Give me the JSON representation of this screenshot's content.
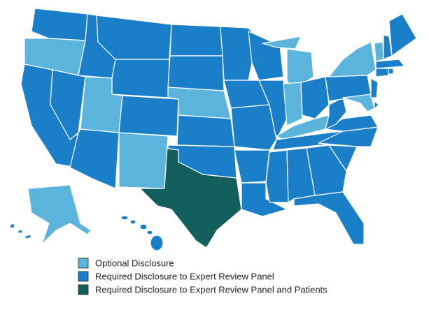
{
  "legend": {
    "items": [
      {
        "label": "Optional Disclosure",
        "color": "#5ab4dc"
      },
      {
        "label": "Required Disclosure to Expert Review Panel",
        "color": "#1a7fc8"
      },
      {
        "label": "Required Disclosure to Expert Review Panel and Patients",
        "color": "#135f5d"
      }
    ]
  }
}
